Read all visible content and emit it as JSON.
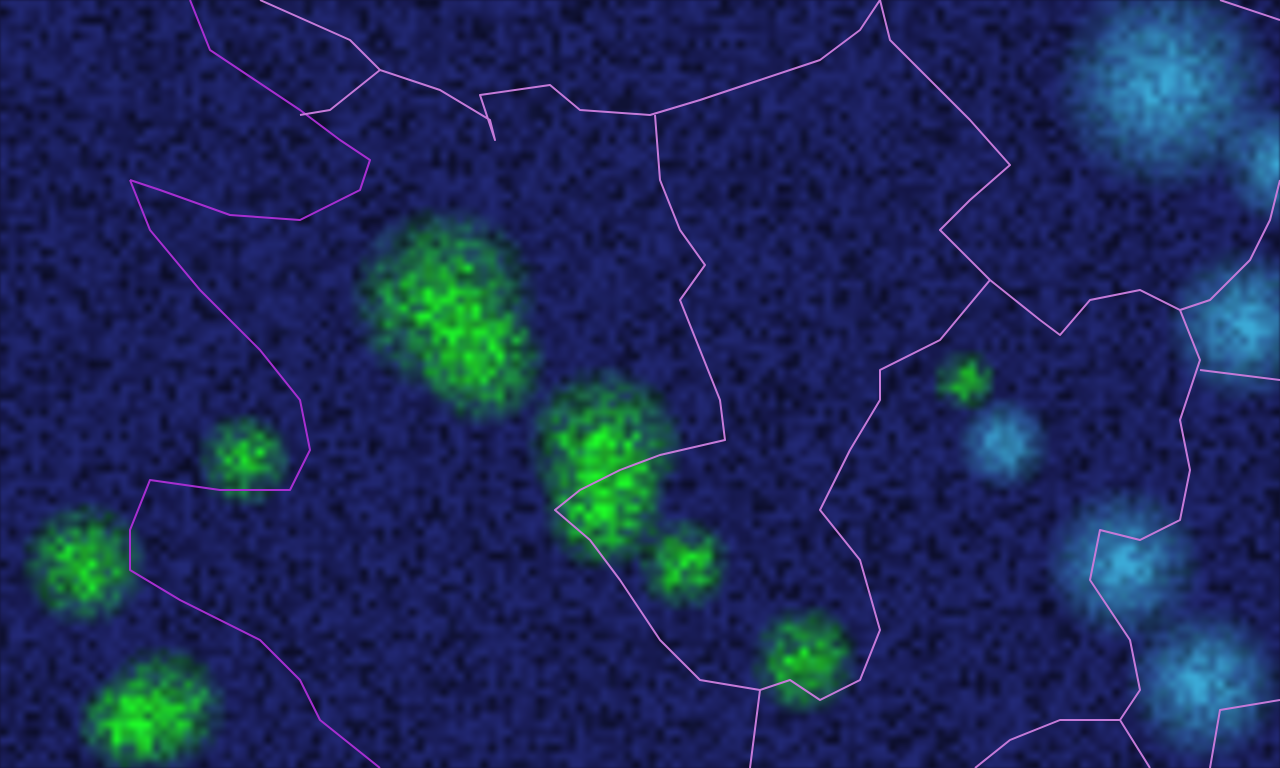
{
  "map": {
    "layer": "satellite-imagery",
    "colors": {
      "background": "#1c1f5a",
      "vegetation_or_signal": "#3ee83a",
      "cloud": "#4fb6d8",
      "border_primary": "#a52fd0",
      "border_secondary": "#c77fe0"
    }
  }
}
